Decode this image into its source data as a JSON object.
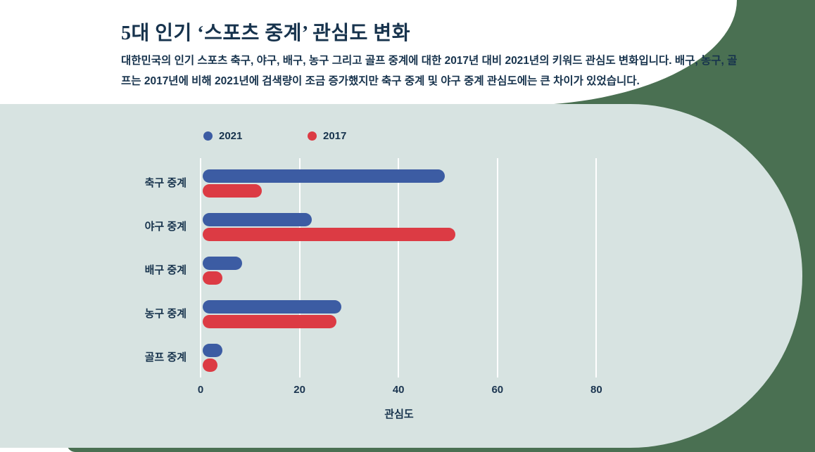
{
  "page": {
    "title": "5대 인기 ‘스포츠 중계’ 관심도 변화",
    "subtitle": "대한민국의 인기 스포츠 축구, 야구, 배구, 농구 그리고 골프 중계에 대한 2017년 대비 2021년의 키워드 관심도 변화입니다. 배구, 농구, 골프는 2017년에 비해 2021년에 검색량이 조금 증가했지만 축구 중계 및 야구 중계 관심도에는 큰 차이가 있었습니다."
  },
  "colors": {
    "background_green": "#4A7052",
    "panel": "#D7E3E1",
    "series_2021_blue": "#3C5CA3",
    "series_2017_red": "#DC3B44",
    "text_navy": "#17334D",
    "gridline": "#FFFFFF"
  },
  "chart_data": {
    "type": "bar",
    "orientation": "horizontal",
    "title": "5대 인기 ‘스포츠 중계’ 관심도 변화",
    "categories": [
      "축구 중계",
      "야구 중계",
      "배구 중계",
      "농구 중계",
      "골프 중계"
    ],
    "series": [
      {
        "name": "2021",
        "color": "#3C5CA3",
        "values": [
          49,
          22,
          8,
          28,
          4
        ]
      },
      {
        "name": "2017",
        "color": "#DC3B44",
        "values": [
          12,
          51,
          4,
          27,
          3
        ]
      }
    ],
    "xlabel": "관심도",
    "xticks": [
      0,
      20,
      40,
      60,
      80
    ],
    "xlim": [
      0,
      88
    ],
    "grid": "vertical-white-lines",
    "legend_position": "top-left"
  }
}
